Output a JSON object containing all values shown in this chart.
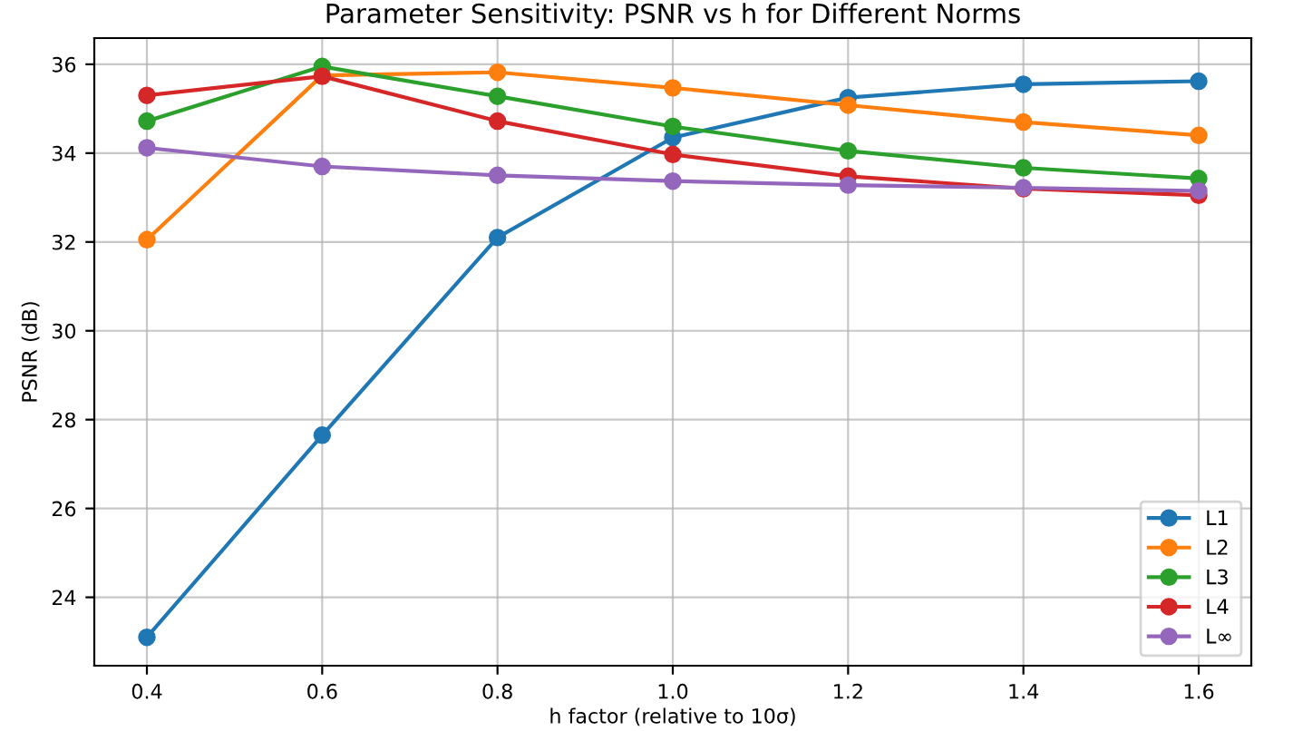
{
  "chart_data": {
    "type": "line",
    "title": "Parameter Sensitivity: PSNR vs h for Different Norms",
    "xlabel": "h factor (relative to 10σ)",
    "ylabel": "PSNR (dB)",
    "x": [
      0.4,
      0.6,
      0.8,
      1.0,
      1.2,
      1.4,
      1.6
    ],
    "series": [
      {
        "name": "L1",
        "color": "#1f77b4",
        "values": [
          23.1,
          27.65,
          32.1,
          34.35,
          35.25,
          35.55,
          35.62
        ]
      },
      {
        "name": "L2",
        "color": "#ff7f0e",
        "values": [
          32.05,
          35.75,
          35.82,
          35.47,
          35.08,
          34.7,
          34.4
        ]
      },
      {
        "name": "L3",
        "color": "#2ca02c",
        "values": [
          34.72,
          35.95,
          35.28,
          34.6,
          34.05,
          33.67,
          33.43
        ]
      },
      {
        "name": "L4",
        "color": "#d62728",
        "values": [
          35.3,
          35.73,
          34.72,
          33.97,
          33.48,
          33.2,
          33.05
        ]
      },
      {
        "name": "L∞",
        "color": "#9467bd",
        "values": [
          34.12,
          33.7,
          33.5,
          33.37,
          33.28,
          33.22,
          33.15
        ]
      }
    ],
    "xlim": [
      0.34,
      1.66
    ],
    "ylim": [
      22.46,
      36.59
    ],
    "xticks": [
      {
        "value": 0.4,
        "label": "0.4"
      },
      {
        "value": 0.6,
        "label": "0.6"
      },
      {
        "value": 0.8,
        "label": "0.8"
      },
      {
        "value": 1.0,
        "label": "1.0"
      },
      {
        "value": 1.2,
        "label": "1.2"
      },
      {
        "value": 1.4,
        "label": "1.4"
      },
      {
        "value": 1.6,
        "label": "1.6"
      }
    ],
    "yticks": [
      24,
      26,
      28,
      30,
      32,
      34,
      36
    ],
    "grid": true,
    "legend": "bottom right",
    "marker": "circle",
    "line_style": "solid"
  }
}
